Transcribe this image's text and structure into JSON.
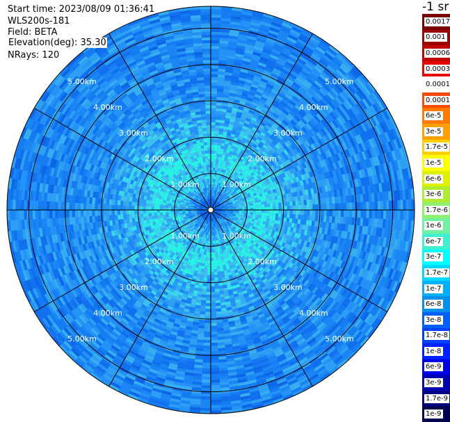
{
  "header": {
    "start_time": "Start time: 2023/08/09 01:36:41",
    "instrument": "WLS200s-181",
    "field": "Field: BETA",
    "elevation": "Elevation(deg): 35.30",
    "nrays": "NRays: 120"
  },
  "colorbar": {
    "title": "-1 sr",
    "labels": [
      "0.0017",
      "0.001",
      "0.0006",
      "0.0003",
      "0.00017",
      "0.0001",
      "6e-5",
      "3e-5",
      "1.7e-5",
      "1e-5",
      "6e-6",
      "3e-6",
      "1.7e-6",
      "1e-6",
      "6e-7",
      "3e-7",
      "1.7e-7",
      "1e-7",
      "6e-8",
      "3e-8",
      "1.7e-8",
      "1e-8",
      "6e-9",
      "3e-9",
      "1.7e-9",
      "1e-9"
    ],
    "colors": [
      "#7a0000",
      "#990000",
      "#bf0000",
      "#e60000",
      "#ffffff",
      "#ff4a00",
      "#ff7a00",
      "#ffa000",
      "#ffd000",
      "#ffff00",
      "#e0f000",
      "#b0ec30",
      "#90f070",
      "#70f0a0",
      "#40f0d0",
      "#00ffff",
      "#00d8ff",
      "#00b0ff",
      "#0090f0",
      "#0060ff",
      "#0040ff",
      "#0020ff",
      "#0000e6",
      "#0000b0",
      "#000080",
      "#000050"
    ]
  },
  "chart_data": {
    "type": "heatmap",
    "title": "",
    "projection": "polar (PPI scan)",
    "range_rings_km": [
      1,
      2,
      3,
      4,
      5
    ],
    "ring_labels": [
      "1.00km",
      "2.00km",
      "3.00km",
      "4.00km",
      "5.00km"
    ],
    "max_range_km": 5.6,
    "azimuth_spokes_deg": [
      0,
      30,
      60,
      90,
      120,
      150,
      180,
      210,
      240,
      270,
      300,
      330
    ],
    "nrays": 120,
    "field": "BETA",
    "units": "sr-1",
    "color_scale": "log",
    "value_range": [
      1e-09,
      0.0017
    ],
    "typical_values_by_range": [
      {
        "range_km": 0.3,
        "beta": 2e-08
      },
      {
        "range_km": 1.5,
        "beta": 3e-07
      },
      {
        "range_km": 3.0,
        "beta": 5e-08
      },
      {
        "range_km": 5.0,
        "beta": 3e-08
      }
    ]
  }
}
